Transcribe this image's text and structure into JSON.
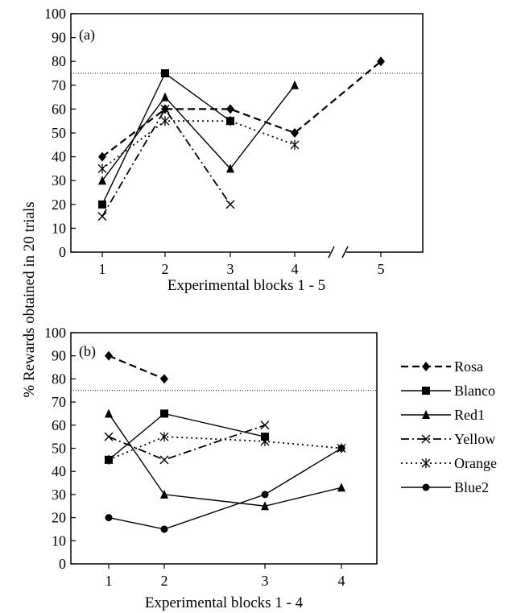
{
  "figure": {
    "shared_ylabel": "% Rewards obtained in 20 trials"
  },
  "chart_data": [
    {
      "type": "line",
      "panel_label": "(a)",
      "xlabel": "Experimental blocks 1 - 5",
      "ylabel": "% Rewards obtained in 20 trials",
      "categories": [
        "1",
        "2",
        "3",
        "4",
        "5"
      ],
      "ylim": [
        0,
        100
      ],
      "yticks": [
        0,
        10,
        20,
        30,
        40,
        50,
        60,
        70,
        80,
        90,
        100
      ],
      "reference_line": 75,
      "x_axis_break_between": [
        "4",
        "5"
      ],
      "series": [
        {
          "name": "Rosa",
          "values": [
            40,
            60,
            60,
            50,
            80
          ]
        },
        {
          "name": "Blanco",
          "values": [
            20,
            75,
            55,
            null,
            null
          ]
        },
        {
          "name": "Red1",
          "values": [
            30,
            65,
            35,
            70,
            null
          ]
        },
        {
          "name": "Yellow",
          "values": [
            15,
            60,
            20,
            null,
            null
          ]
        },
        {
          "name": "Orange",
          "values": [
            35,
            55,
            55,
            45,
            null
          ]
        }
      ]
    },
    {
      "type": "line",
      "panel_label": "(b)",
      "xlabel": "Experimental blocks 1 - 4",
      "ylabel": "% Rewards obtained in 20 trials",
      "categories": [
        "1",
        "2",
        "3",
        "4"
      ],
      "ylim": [
        0,
        100
      ],
      "yticks": [
        0,
        10,
        20,
        30,
        40,
        50,
        60,
        70,
        80,
        90,
        100
      ],
      "reference_line": 75,
      "series": [
        {
          "name": "Rosa",
          "values": [
            90,
            80,
            null,
            null
          ]
        },
        {
          "name": "Blanco",
          "values": [
            45,
            65,
            55,
            null
          ]
        },
        {
          "name": "Red1",
          "values": [
            65,
            30,
            25,
            33
          ]
        },
        {
          "name": "Yellow",
          "values": [
            55,
            45,
            60,
            null
          ]
        },
        {
          "name": "Orange",
          "values": [
            45,
            55,
            53,
            50
          ]
        },
        {
          "name": "Blue2",
          "values": [
            20,
            15,
            30,
            50
          ]
        }
      ]
    }
  ],
  "legend": {
    "position": "right of panel (b)",
    "entries": [
      {
        "name": "Rosa",
        "marker": "diamond",
        "line": "dashed"
      },
      {
        "name": "Blanco",
        "marker": "square",
        "line": "solid"
      },
      {
        "name": "Red1",
        "marker": "triangle",
        "line": "solid"
      },
      {
        "name": "Yellow",
        "marker": "cross",
        "line": "dash-dot"
      },
      {
        "name": "Orange",
        "marker": "star",
        "line": "dotted"
      },
      {
        "name": "Blue2",
        "marker": "circle",
        "line": "solid"
      }
    ]
  },
  "style": {
    "line_color": "#000000",
    "background": "#ffffff",
    "reference_line_color": "#000000"
  }
}
